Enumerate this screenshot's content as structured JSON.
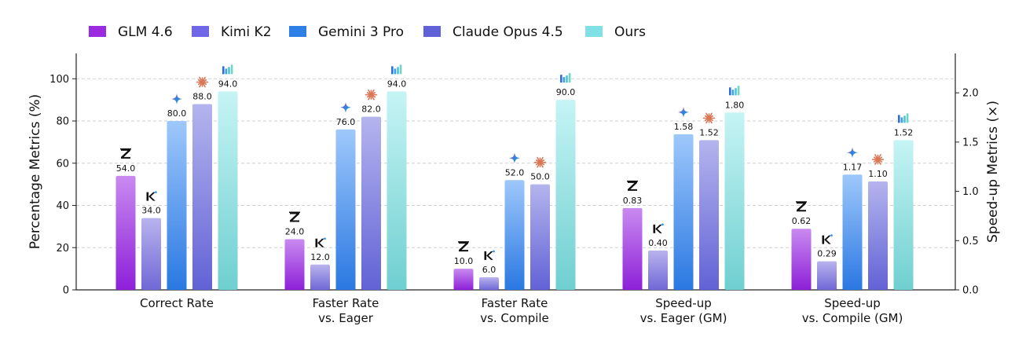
{
  "chart_data": {
    "type": "bar",
    "categories": [
      [
        "Correct Rate"
      ],
      [
        "Faster Rate",
        "vs. Eager"
      ],
      [
        "Faster Rate",
        "vs. Compile"
      ],
      [
        "Speed-up",
        "vs. Eager (GM)"
      ],
      [
        "Speed-up",
        "vs. Compile (GM)"
      ]
    ],
    "series": [
      {
        "name": "GLM 4.6",
        "color_top": "#c98af0",
        "color_bottom": "#8d20d8",
        "icon": "zhipu-z-icon",
        "values": [
          54.0,
          24.0,
          10.0,
          0.83,
          0.62
        ],
        "labels": [
          "54.0",
          "24.0",
          "10.0",
          "0.83",
          "0.62"
        ]
      },
      {
        "name": "Kimi K2",
        "color_top": "#b9b3ee",
        "color_bottom": "#7068d6",
        "icon": "kimi-k-icon",
        "values": [
          34.0,
          12.0,
          6.0,
          0.4,
          0.29
        ],
        "labels": [
          "34.0",
          "12.0",
          "6.0",
          "0.40",
          "0.29"
        ]
      },
      {
        "name": "Gemini 3 Pro",
        "color_top": "#9ec8fb",
        "color_bottom": "#2a78e2",
        "icon": "gemini-sparkle-icon",
        "values": [
          80.0,
          76.0,
          52.0,
          1.58,
          1.17
        ],
        "labels": [
          "80.0",
          "76.0",
          "52.0",
          "1.58",
          "1.17"
        ]
      },
      {
        "name": "Claude Opus 4.5",
        "color_top": "#b4b4ee",
        "color_bottom": "#6262d6",
        "icon": "claude-asterisk-icon",
        "values": [
          88.0,
          82.0,
          50.0,
          1.52,
          1.1
        ],
        "labels": [
          "88.0",
          "82.0",
          "50.0",
          "1.52",
          "1.10"
        ]
      },
      {
        "name": "Ours",
        "color_top": "#c6f4f5",
        "color_bottom": "#6fcfd0",
        "icon": "bars-logo-icon",
        "values": [
          94.0,
          94.0,
          90.0,
          1.8,
          1.52
        ],
        "labels": [
          "94.0",
          "94.0",
          "90.0",
          "1.80",
          "1.52"
        ]
      }
    ],
    "legend_colors": [
      "#9b2be0",
      "#7067e6",
      "#2f80e6",
      "#6161d8",
      "#7fe0e6"
    ],
    "axis_for_category": [
      "left",
      "left",
      "left",
      "right",
      "right"
    ],
    "ylabel_left": "Percentage Metrics (%)",
    "ylabel_right": "Speed-up Metrics (×)",
    "ylim_left": [
      0,
      112
    ],
    "ylim_right": [
      0,
      2.4
    ],
    "yticks_left": [
      "0",
      "20",
      "40",
      "60",
      "80",
      "100"
    ],
    "yticks_left_values": [
      0,
      20,
      40,
      60,
      80,
      100
    ],
    "yticks_right": [
      "0.0",
      "0.5",
      "1.0",
      "1.5",
      "2.0"
    ],
    "yticks_right_values": [
      0,
      0.5,
      1.0,
      1.5,
      2.0
    ],
    "grid": true,
    "legend_position": "top-left"
  }
}
